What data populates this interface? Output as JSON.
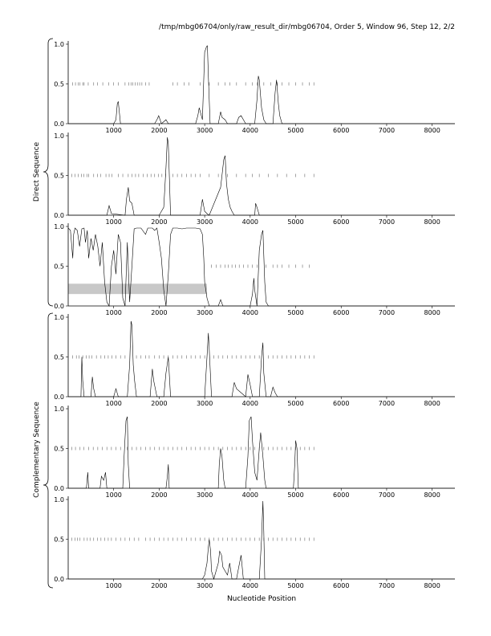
{
  "page": {
    "header": "/tmp/mbg06704/only/raw_result_dir/mbg06704, Order 5, Window 96, Step 12, 2/2"
  },
  "labels": {
    "direct_group": "Direct Sequence",
    "complementary_group": "Complementary Sequence",
    "xlabel": "Nucleotide Position"
  },
  "chart_data": {
    "type": "line",
    "xlabel": "Nucleotide Position",
    "xlim": [
      0,
      8500
    ],
    "ylim": [
      0,
      1
    ],
    "xticks": [
      1000,
      2000,
      3000,
      4000,
      5000,
      6000,
      7000,
      8000
    ],
    "yticks": [
      0.0,
      0.5,
      1.0
    ],
    "ytick_labels": [
      "0.0",
      "0.5",
      "1.0"
    ],
    "panels": [
      {
        "group": "direct",
        "frame": 1,
        "series": [
          {
            "x": [
              0,
              1000,
              1050,
              1080,
              1100,
              1150,
              1900,
              1950,
              1990,
              2050,
              2150,
              2200,
              2800,
              2850,
              2880,
              2950,
              3000,
              3040,
              3060,
              3080,
              3120,
              3300,
              3350,
              3380,
              3450,
              3500,
              3700,
              3750,
              3800,
              3900,
              4100,
              4150,
              4180,
              4200,
              4250,
              4300,
              4350,
              4500,
              4550,
              4580,
              4620,
              4650,
              4700,
              5000,
              8500
            ],
            "y": [
              0,
              0,
              0.05,
              0.25,
              0.28,
              0,
              0,
              0.05,
              0.1,
              0,
              0.05,
              0,
              0,
              0.1,
              0.2,
              0.05,
              0.9,
              0.97,
              0.98,
              0.6,
              0,
              0,
              0.15,
              0.08,
              0.05,
              0,
              0,
              0.08,
              0.1,
              0,
              0,
              0.3,
              0.6,
              0.55,
              0.2,
              0.05,
              0,
              0,
              0.4,
              0.55,
              0.25,
              0.1,
              0,
              0,
              0
            ]
          }
        ],
        "ticks_y": 0.5,
        "ticks_x": [
          100,
          160,
          220,
          260,
          320,
          350,
          440,
          560,
          640,
          760,
          890,
          1000,
          1100,
          1250,
          1330,
          1380,
          1420,
          1470,
          1520,
          1570,
          1620,
          1700,
          1780,
          2300,
          2400,
          2550,
          2650,
          2900,
          3100,
          3300,
          3450,
          3550,
          3700,
          3900,
          4050,
          4150,
          4300,
          4450,
          4600,
          4700,
          4850,
          5000,
          5150,
          5300,
          5400
        ]
      },
      {
        "group": "direct",
        "frame": 2,
        "series": [
          {
            "x": [
              0,
              850,
              900,
              950,
              1250,
              1280,
              1320,
              1350,
              1400,
              1450,
              2000,
              2100,
              2150,
              2180,
              2200,
              2250,
              2900,
              2950,
              3000,
              3050,
              3100,
              3350,
              3380,
              3420,
              3450,
              3480,
              3520,
              3560,
              3600,
              3650,
              4100,
              4120,
              4150,
              4200,
              4500,
              8500
            ],
            "y": [
              0,
              0,
              0.12,
              0.02,
              0,
              0.2,
              0.35,
              0.18,
              0.15,
              0,
              0,
              0.1,
              0.6,
              0.98,
              0.9,
              0,
              0,
              0.2,
              0.05,
              0.02,
              0,
              0.35,
              0.5,
              0.7,
              0.75,
              0.4,
              0.2,
              0.1,
              0.05,
              0,
              0,
              0.15,
              0.1,
              0,
              0,
              0
            ]
          }
        ],
        "ticks_y": 0.5,
        "ticks_x": [
          80,
          150,
          220,
          290,
          340,
          410,
          450,
          560,
          640,
          710,
          830,
          900,
          960,
          1100,
          1200,
          1320,
          1400,
          1480,
          1550,
          1650,
          1740,
          1820,
          1900,
          1980,
          2060,
          2140,
          2300,
          2400,
          2500,
          2600,
          2700,
          2800,
          2900,
          3100,
          3300,
          3500,
          3700,
          3900,
          4050,
          4200,
          4400,
          4600,
          4800,
          5000,
          5200,
          5400
        ]
      },
      {
        "group": "direct",
        "frame": 3,
        "series": [
          {
            "x": [
              0,
              50,
              100,
              120,
              150,
              200,
              250,
              300,
              350,
              380,
              420,
              450,
              500,
              550,
              600,
              650,
              700,
              750,
              800,
              850,
              900,
              950,
              1000,
              1050,
              1100,
              1150,
              1200,
              1250,
              1300,
              1350,
              1400,
              1450,
              1500,
              1600,
              1700,
              1750,
              1800,
              1850,
              1900,
              1950,
              2000,
              2050,
              2100,
              2150,
              2200,
              2250,
              2300,
              2400,
              2500,
              2600,
              2700,
              2800,
              2900,
              2950,
              2980,
              3000,
              3050,
              3100,
              3300,
              3350,
              3400,
              4000,
              4050,
              4080,
              4100,
              4150,
              4200,
              4250,
              4280,
              4320,
              4350,
              4400,
              8500
            ],
            "y": [
              0.98,
              0.95,
              0.6,
              0.9,
              0.98,
              0.95,
              0.75,
              0.97,
              0.98,
              0.8,
              0.95,
              0.6,
              0.85,
              0.7,
              0.9,
              0.75,
              0.5,
              0.8,
              0.3,
              0.05,
              0,
              0.5,
              0.7,
              0.4,
              0.9,
              0.8,
              0.1,
              0,
              0.8,
              0.05,
              0.5,
              0.97,
              0.98,
              0.98,
              0.9,
              0.98,
              0.98,
              0.98,
              0.95,
              0.98,
              0.8,
              0.6,
              0.2,
              0,
              0.4,
              0.9,
              0.98,
              0.98,
              0.97,
              0.98,
              0.98,
              0.98,
              0.97,
              0.9,
              0.6,
              0.3,
              0.1,
              0,
              0,
              0.08,
              0,
              0,
              0.15,
              0.35,
              0.2,
              0,
              0.7,
              0.9,
              0.95,
              0.3,
              0.05,
              0,
              0
            ]
          }
        ],
        "shaded_region": {
          "x0": 0,
          "x1": 3050,
          "y0": 0.15,
          "y1": 0.28
        },
        "ticks_y": 0.5,
        "ticks_x": [
          3150,
          3250,
          3350,
          3450,
          3520,
          3600,
          3680,
          3760,
          3850,
          3950,
          4050,
          4150,
          4350,
          4500,
          4600,
          4700,
          4850,
          5000,
          5150,
          5300
        ]
      },
      {
        "group": "complementary",
        "frame": 1,
        "series": [
          {
            "x": [
              0,
              280,
              300,
              320,
              350,
              500,
              530,
              560,
              600,
              1000,
              1050,
              1100,
              1300,
              1350,
              1380,
              1400,
              1430,
              1460,
              1500,
              1800,
              1850,
              1880,
              1950,
              2100,
              2150,
              2200,
              2250,
              3000,
              3050,
              3080,
              3100,
              3150,
              3600,
              3650,
              3700,
              3900,
              3950,
              4000,
              4050,
              4200,
              4250,
              4280,
              4300,
              4350,
              4450,
              4500,
              4550,
              4600,
              8500
            ],
            "y": [
              0,
              0,
              0.5,
              0.2,
              0,
              0,
              0.25,
              0.1,
              0,
              0,
              0.1,
              0,
              0,
              0.4,
              0.95,
              0.9,
              0.4,
              0.2,
              0,
              0,
              0.35,
              0.2,
              0,
              0,
              0.3,
              0.5,
              0,
              0,
              0.5,
              0.8,
              0.6,
              0,
              0,
              0.18,
              0.1,
              0,
              0.28,
              0.15,
              0,
              0,
              0.5,
              0.68,
              0.3,
              0,
              0,
              0.12,
              0.05,
              0,
              0
            ]
          }
        ],
        "ticks_y": 0.5,
        "ticks_x": [
          100,
          180,
          240,
          320,
          400,
          460,
          520,
          620,
          720,
          800,
          880,
          960,
          1050,
          1150,
          1250,
          1500,
          1600,
          1700,
          1780,
          1900,
          2000,
          2100,
          2200,
          2300,
          2400,
          2500,
          2600,
          2700,
          2800,
          2900,
          3000,
          3200,
          3300,
          3400,
          3500,
          3600,
          3700,
          3800,
          3900,
          4000,
          4100,
          4200,
          4400,
          4500,
          4600,
          4700,
          4800,
          4900,
          5000,
          5100,
          5200,
          5300,
          5400
        ]
      },
      {
        "group": "complementary",
        "frame": 2,
        "series": [
          {
            "x": [
              0,
              400,
              430,
              450,
              700,
              730,
              780,
              820,
              850,
              1200,
              1230,
              1270,
              1300,
              1320,
              1350,
              2150,
              2180,
              2200,
              2220,
              3300,
              3320,
              3350,
              3380,
              3420,
              3450,
              3900,
              3950,
              3980,
              4020,
              4050,
              4100,
              4150,
              4200,
              4230,
              4280,
              4320,
              4350,
              4950,
              4980,
              5000,
              5030,
              5060,
              8500
            ],
            "y": [
              0,
              0,
              0.2,
              0,
              0,
              0.15,
              0.1,
              0.2,
              0,
              0,
              0.4,
              0.85,
              0.9,
              0.3,
              0,
              0,
              0.15,
              0.3,
              0,
              0,
              0.3,
              0.5,
              0.4,
              0.1,
              0,
              0,
              0.4,
              0.85,
              0.9,
              0.6,
              0.2,
              0.1,
              0.5,
              0.7,
              0.4,
              0.1,
              0,
              0,
              0.3,
              0.6,
              0.5,
              0,
              0
            ]
          }
        ],
        "ticks_y": 0.5,
        "ticks_x": [
          80,
          160,
          260,
          340,
          450,
          550,
          650,
          750,
          850,
          950,
          1050,
          1150,
          1300,
          1400,
          1500,
          1600,
          1700,
          1800,
          1900,
          2000,
          2100,
          2200,
          2300,
          2400,
          2500,
          2600,
          2700,
          2800,
          2900,
          3000,
          3100,
          3200,
          3300,
          3400,
          3500,
          3600,
          3700,
          3800,
          3900,
          4000,
          4100,
          4200,
          4300,
          4400,
          4500,
          4600,
          4700,
          4800,
          4900,
          5000,
          5100,
          5200,
          5300,
          5400
        ]
      },
      {
        "group": "complementary",
        "frame": 3,
        "series": [
          {
            "x": [
              0,
              2950,
              3000,
              3050,
              3080,
              3100,
              3130,
              3150,
              3200,
              3300,
              3330,
              3370,
              3400,
              3450,
              3500,
              3550,
              3600,
              3700,
              3750,
              3800,
              3850,
              4200,
              4250,
              4280,
              4300,
              4320,
              8500
            ],
            "y": [
              0,
              0,
              0.05,
              0.2,
              0.4,
              0.5,
              0.35,
              0.1,
              0,
              0.2,
              0.35,
              0.3,
              0.15,
              0.1,
              0.05,
              0.2,
              0,
              0,
              0.15,
              0.3,
              0,
              0,
              0.5,
              0.98,
              0.6,
              0,
              0
            ]
          }
        ],
        "ticks_y": 0.5,
        "ticks_x": [
          80,
          150,
          200,
          260,
          350,
          420,
          480,
          560,
          640,
          720,
          800,
          880,
          950,
          1050,
          1150,
          1250,
          1350,
          1450,
          1550,
          1700,
          1800,
          1900,
          2000,
          2100,
          2200,
          2300,
          2400,
          2500,
          2600,
          2700,
          2800,
          2900,
          3000,
          3100,
          3200,
          3300,
          3400,
          3500,
          3600,
          3700,
          3800,
          3900,
          4000,
          4100,
          4200,
          4300,
          4400,
          4500,
          4600,
          4700,
          4800,
          4900,
          5000,
          5100,
          5200,
          5300,
          5400
        ]
      }
    ]
  }
}
